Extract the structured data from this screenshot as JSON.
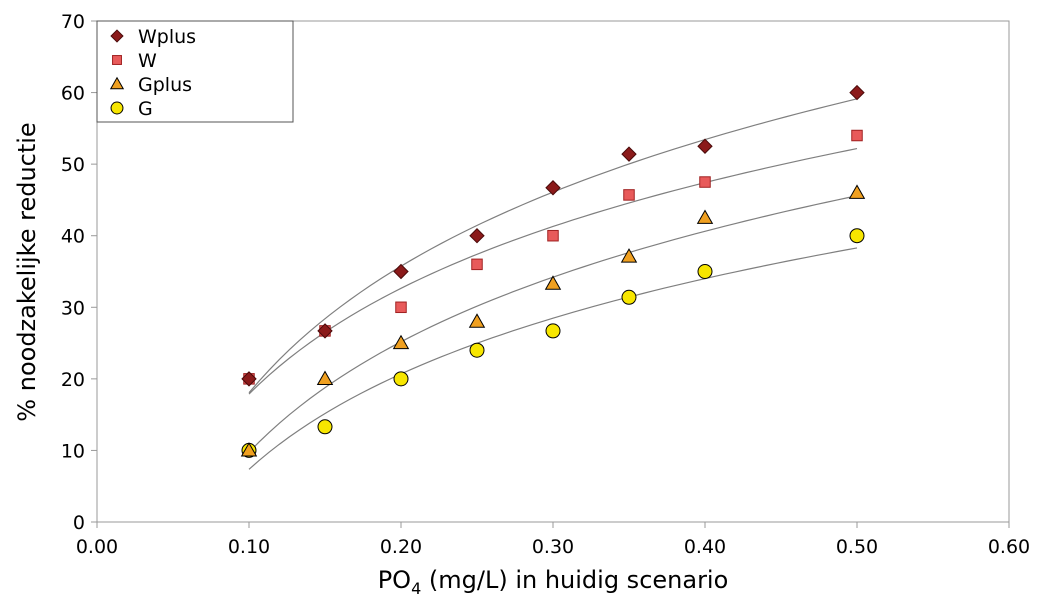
{
  "chart_data": {
    "type": "scatter",
    "title": "",
    "xlabel_main": "PO",
    "xlabel_sub": "4",
    "xlabel_rest": " (mg/L) in huidig scenario",
    "ylabel": "% noodzakelijke reductie",
    "xlim": [
      0,
      0.6
    ],
    "ylim": [
      0,
      70
    ],
    "xticks": [
      "0.00",
      "0.10",
      "0.20",
      "0.30",
      "0.40",
      "0.50",
      "0.60"
    ],
    "yticks": [
      "0",
      "10",
      "20",
      "30",
      "40",
      "50",
      "60",
      "70"
    ],
    "grid": false,
    "trendlines": true,
    "legend_position": "top-left",
    "series": [
      {
        "name": "Wplus",
        "marker": "diamond",
        "color": "#8b1a1a",
        "x": [
          0.1,
          0.15,
          0.2,
          0.25,
          0.3,
          0.35,
          0.4,
          0.5
        ],
        "y": [
          20,
          26.7,
          35,
          40,
          46.7,
          51.4,
          52.5,
          60
        ]
      },
      {
        "name": "W",
        "marker": "square",
        "color": "#e85a5a",
        "x": [
          0.1,
          0.15,
          0.2,
          0.25,
          0.3,
          0.35,
          0.4,
          0.5
        ],
        "y": [
          20,
          26.7,
          30,
          36,
          40,
          45.7,
          47.5,
          54
        ]
      },
      {
        "name": "Gplus",
        "marker": "triangle",
        "color": "#f0a020",
        "x": [
          0.1,
          0.15,
          0.2,
          0.25,
          0.3,
          0.35,
          0.4,
          0.5
        ],
        "y": [
          10,
          20,
          25,
          28,
          33.3,
          37.1,
          42.5,
          46
        ]
      },
      {
        "name": "G",
        "marker": "circle",
        "color": "#f7e600",
        "x": [
          0.1,
          0.15,
          0.2,
          0.25,
          0.3,
          0.35,
          0.4,
          0.5
        ],
        "y": [
          10,
          13.3,
          20,
          24,
          26.7,
          31.4,
          35,
          40
        ]
      }
    ]
  }
}
